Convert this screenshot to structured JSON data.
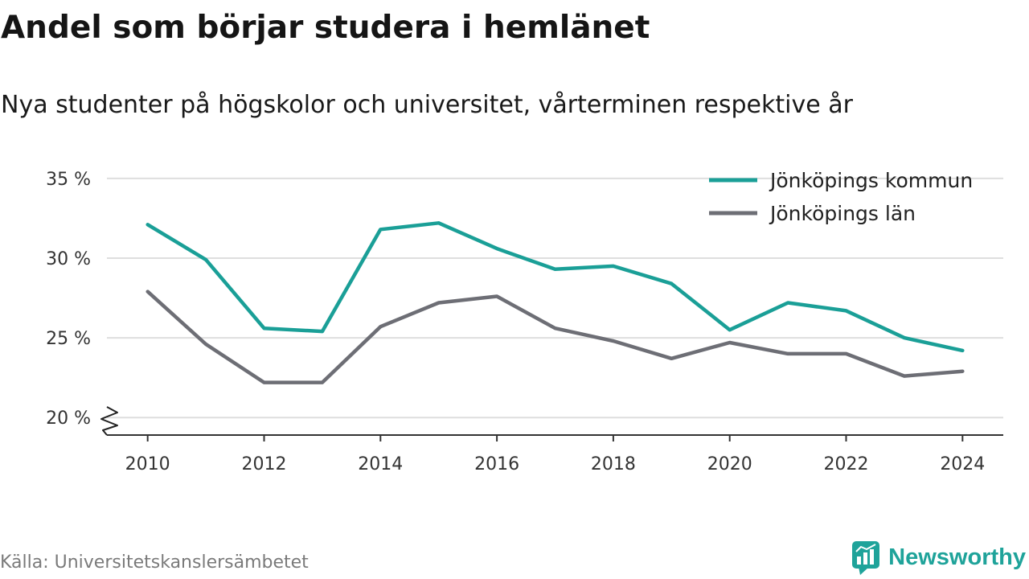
{
  "chart_data": {
    "type": "line",
    "title": "Andel som börjar studera i hemlänet",
    "subtitle": "Nya studenter på högskolor och universitet, vårterminen respektive år",
    "xlabel": "",
    "ylabel": "",
    "x": [
      2010,
      2011,
      2012,
      2013,
      2014,
      2015,
      2016,
      2017,
      2018,
      2019,
      2020,
      2021,
      2022,
      2023,
      2024
    ],
    "x_ticks": [
      2010,
      2012,
      2014,
      2016,
      2018,
      2020,
      2022,
      2024
    ],
    "y_ticks": [
      20,
      25,
      30,
      35
    ],
    "y_tick_labels": [
      "20 %",
      "25 %",
      "30 %",
      "35 %"
    ],
    "xlim": [
      2009.3,
      2024.7
    ],
    "ylim": [
      18.9,
      36
    ],
    "y_axis_break": true,
    "grid": true,
    "legend_position": "top-right",
    "series": [
      {
        "name": "Jönköpings kommun",
        "color": "#1a9f97",
        "values": [
          32.1,
          29.9,
          25.6,
          25.4,
          31.8,
          32.2,
          30.6,
          29.3,
          29.5,
          28.4,
          25.5,
          27.2,
          26.7,
          25.0,
          24.2
        ]
      },
      {
        "name": "Jönköpings län",
        "color": "#6d6e75",
        "values": [
          27.9,
          24.6,
          22.2,
          22.2,
          25.7,
          27.2,
          27.6,
          25.6,
          24.8,
          23.7,
          24.7,
          24.0,
          24.0,
          22.6,
          22.9
        ]
      }
    ]
  },
  "source": "Källa: Universitetskanslersämbetet",
  "brand": {
    "name": "Newsworthy",
    "icon": "newsworthy-logo-icon",
    "color": "#1fa39a"
  }
}
